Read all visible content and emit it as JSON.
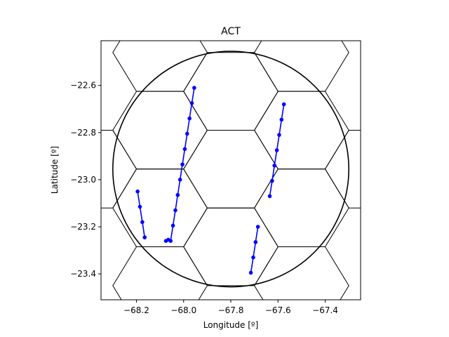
{
  "chart_data": {
    "type": "scatter",
    "title": "ACT",
    "xlabel": "Longitude [º]",
    "ylabel": "Latitude [º]",
    "xlim": [
      -68.35,
      -67.25
    ],
    "ylim": [
      -23.51,
      -22.41
    ],
    "xticks": [
      -68.2,
      -68.0,
      -67.8,
      -67.6,
      -67.4
    ],
    "xtick_labels": [
      "−68.2",
      "−68.0",
      "−67.8",
      "−67.6",
      "−67.4"
    ],
    "yticks": [
      -22.6,
      -22.8,
      -23.0,
      -23.2,
      -23.4
    ],
    "ytick_labels": [
      "−22.6",
      "−22.8",
      "−23.0",
      "−23.2",
      "−23.4"
    ],
    "grid": false,
    "boundary_circle": {
      "center": [
        -67.8,
        -22.955
      ],
      "radius": 0.5,
      "color": "#000000"
    },
    "hexagons": [
      {
        "center": [
          -67.8,
          -22.955
        ]
      },
      {
        "center": [
          -67.8,
          -22.625
        ]
      },
      {
        "center": [
          -67.8,
          -23.285
        ]
      },
      {
        "center": [
          -68.1,
          -22.79
        ]
      },
      {
        "center": [
          -68.1,
          -23.12
        ]
      },
      {
        "center": [
          -67.5,
          -22.79
        ]
      },
      {
        "center": [
          -67.5,
          -23.12
        ]
      },
      {
        "center": [
          -68.1,
          -22.46
        ]
      },
      {
        "center": [
          -67.5,
          -22.46
        ]
      },
      {
        "center": [
          -68.1,
          -23.45
        ]
      },
      {
        "center": [
          -67.5,
          -23.45
        ]
      },
      {
        "center": [
          -68.4,
          -22.955
        ]
      },
      {
        "center": [
          -67.2,
          -22.955
        ]
      }
    ],
    "hex_radius": 0.2,
    "hex_color": "#000000",
    "series": [
      {
        "color": "#0000ff",
        "x": [
          -68.195,
          -68.185,
          -68.175,
          -68.165
        ],
        "y": [
          -23.05,
          -23.115,
          -23.18,
          -23.245
        ]
      },
      {
        "color": "#0000ff",
        "x": [
          -67.955,
          -67.965,
          -67.975,
          -67.985,
          -67.995,
          -68.005,
          -68.015,
          -68.025,
          -68.035,
          -68.045,
          -68.055,
          -68.065,
          -68.075
        ],
        "y": [
          -22.61,
          -22.675,
          -22.74,
          -22.805,
          -22.87,
          -22.935,
          -23.0,
          -23.065,
          -23.13,
          -23.195,
          -23.26,
          -23.255,
          -23.26
        ]
      },
      {
        "color": "#0000ff",
        "x": [
          -67.575,
          -67.585,
          -67.595,
          -67.605,
          -67.615,
          -67.625,
          -67.635
        ],
        "y": [
          -22.68,
          -22.745,
          -22.81,
          -22.875,
          -22.94,
          -23.005,
          -23.07
        ]
      },
      {
        "color": "#0000ff",
        "x": [
          -67.685,
          -67.695,
          -67.705,
          -67.715
        ],
        "y": [
          -23.2,
          -23.265,
          -23.33,
          -23.395
        ]
      }
    ]
  }
}
